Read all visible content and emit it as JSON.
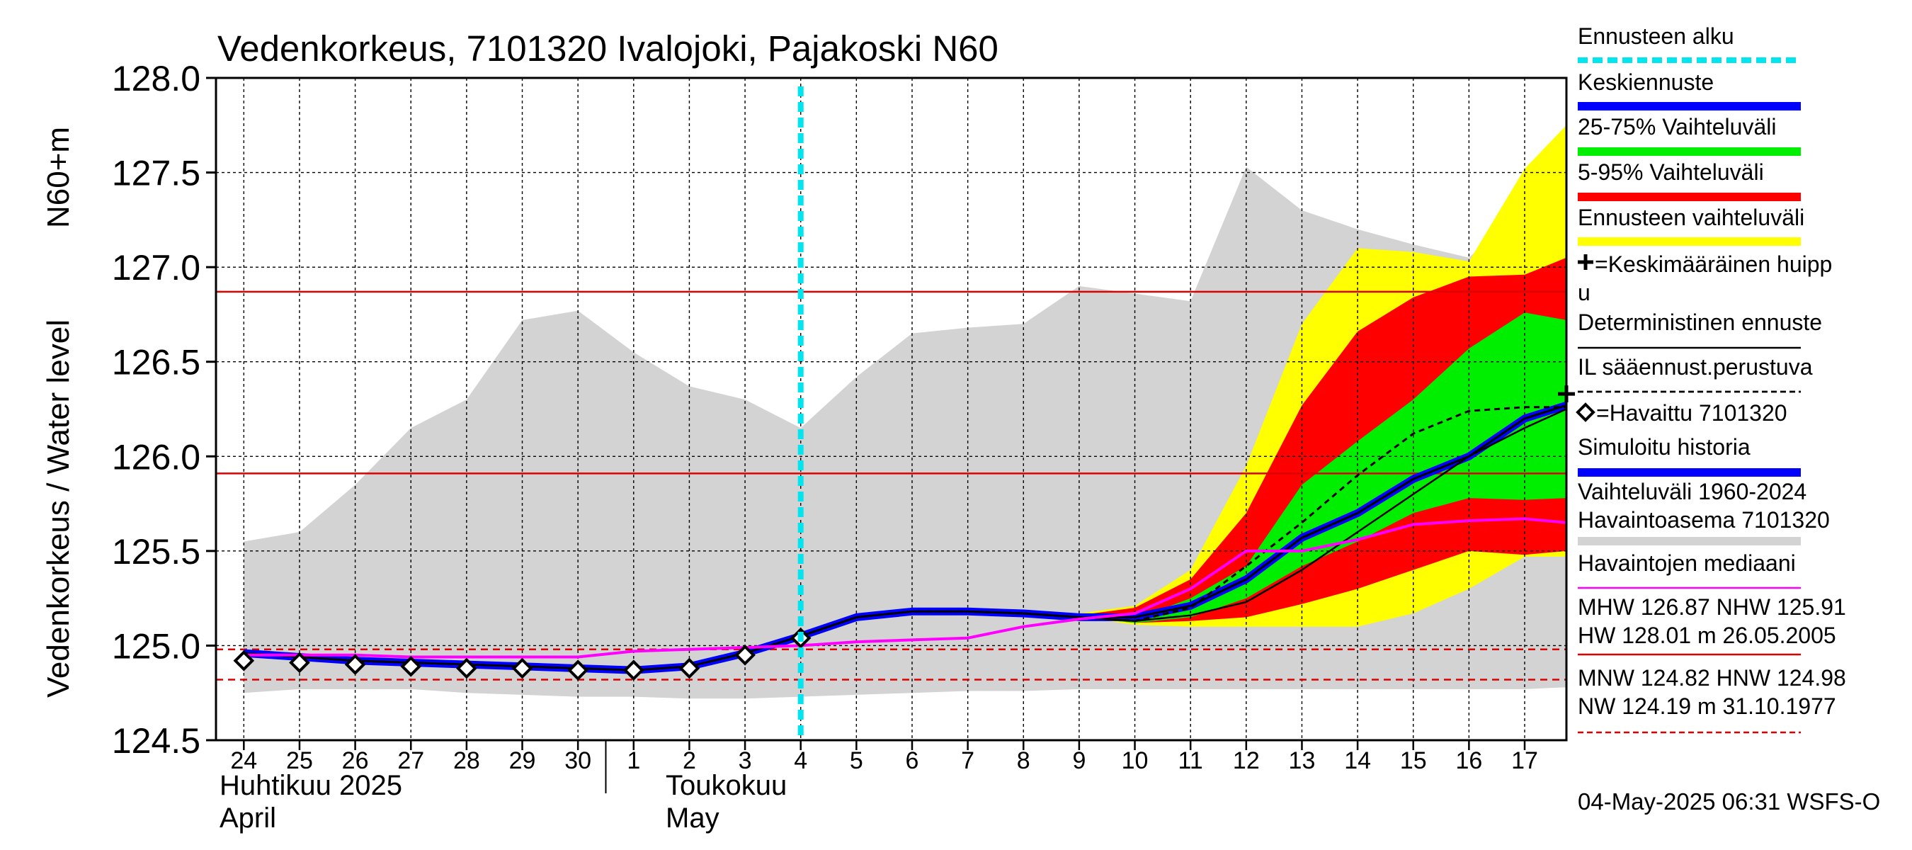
{
  "chart_data": {
    "type": "area",
    "title": "Vedenkorkeus, 7101320 Ivalojoki, Pajakoski N60",
    "ylabel_left": "Vedenkorkeus / Water level",
    "ylabel_right": "N60+m",
    "ylim": [
      124.5,
      128.0
    ],
    "y_ticks": [
      "124.5",
      "125.0",
      "125.5",
      "126.0",
      "126.5",
      "127.0",
      "127.5",
      "128.0"
    ],
    "x_range": [
      -0.5,
      23.75
    ],
    "x_tick_labels": [
      "24",
      "25",
      "26",
      "27",
      "28",
      "29",
      "30",
      "1",
      "2",
      "3",
      "4",
      "5",
      "6",
      "7",
      "8",
      "9",
      "10",
      "11",
      "12",
      "13",
      "14",
      "15",
      "16",
      "17"
    ],
    "month_labels": {
      "april_fi": "Huhtikuu  2025",
      "april_en": "April",
      "may_fi": "Toukokuu",
      "may_en": "May"
    },
    "grid": true,
    "legend_placement": "right",
    "forecast_start_x": 10,
    "reference_lines": [
      {
        "name": "MHW",
        "value": 126.87,
        "color": "#dd0000",
        "style": "solid"
      },
      {
        "name": "NHW",
        "value": 125.91,
        "color": "#dd0000",
        "style": "solid"
      },
      {
        "name": "HNW",
        "value": 124.98,
        "color": "#dd0000",
        "style": "dashed"
      },
      {
        "name": "MNW",
        "value": 124.82,
        "color": "#dd0000",
        "style": "dashed"
      }
    ],
    "variation_band": {
      "color": "#d3d3d3",
      "x": [
        0,
        1,
        2,
        3,
        4,
        5,
        6,
        7,
        8,
        9,
        10,
        11,
        12,
        13,
        14,
        15,
        16,
        17,
        18,
        19,
        20,
        21,
        22,
        23,
        23.75
      ],
      "upper": [
        125.55,
        125.6,
        125.85,
        126.15,
        126.3,
        126.72,
        126.77,
        126.55,
        126.37,
        126.3,
        126.15,
        126.42,
        126.65,
        126.68,
        126.7,
        126.9,
        126.86,
        126.82,
        127.53,
        127.3,
        127.2,
        127.12,
        127.05,
        127.32,
        127.31
      ],
      "lower": [
        124.75,
        124.77,
        124.77,
        124.77,
        124.75,
        124.74,
        124.73,
        124.73,
        124.72,
        124.72,
        124.73,
        124.74,
        124.75,
        124.76,
        124.76,
        124.77,
        124.77,
        124.77,
        124.77,
        124.77,
        124.77,
        124.77,
        124.77,
        124.77,
        124.78
      ]
    },
    "forecast_x": [
      10,
      11,
      12,
      13,
      14,
      15,
      16,
      17,
      18,
      19,
      20,
      21,
      22,
      23,
      23.75
    ],
    "forecast_range": {
      "color": "#ffff00",
      "upper": [
        125.05,
        125.15,
        125.18,
        125.18,
        125.17,
        125.17,
        125.21,
        125.4,
        125.95,
        126.7,
        127.1,
        127.08,
        127.03,
        127.52,
        127.75
      ],
      "lower": [
        125.05,
        125.15,
        125.18,
        125.18,
        125.17,
        125.15,
        125.11,
        125.1,
        125.1,
        125.1,
        125.1,
        125.17,
        125.3,
        125.47,
        125.47
      ]
    },
    "p5_95": {
      "color": "#ff0000",
      "upper": [
        125.05,
        125.15,
        125.18,
        125.18,
        125.17,
        125.16,
        125.2,
        125.35,
        125.7,
        126.27,
        126.66,
        126.84,
        126.95,
        126.96,
        127.05
      ],
      "lower": [
        125.05,
        125.15,
        125.18,
        125.18,
        125.17,
        125.15,
        125.12,
        125.13,
        125.15,
        125.22,
        125.3,
        125.4,
        125.5,
        125.48,
        125.5
      ]
    },
    "p25_75": {
      "color": "#00ee00",
      "upper": [
        125.05,
        125.15,
        125.18,
        125.18,
        125.17,
        125.15,
        125.14,
        125.25,
        125.42,
        125.85,
        126.08,
        126.3,
        126.57,
        126.76,
        126.72
      ],
      "lower": [
        125.05,
        125.15,
        125.18,
        125.18,
        125.17,
        125.15,
        125.12,
        125.15,
        125.25,
        125.42,
        125.55,
        125.7,
        125.78,
        125.77,
        125.78
      ]
    },
    "series": [
      {
        "name": "Keskiennuste",
        "color": "#0000ff",
        "style": "mean_forecast",
        "x": [
          10,
          11,
          12,
          13,
          14,
          15,
          16,
          17,
          18,
          19,
          20,
          21,
          22,
          23,
          23.75
        ],
        "values": [
          125.05,
          125.15,
          125.18,
          125.18,
          125.17,
          125.15,
          125.15,
          125.21,
          125.35,
          125.57,
          125.7,
          125.88,
          126.0,
          126.2,
          126.27
        ]
      },
      {
        "name": "Deterministinen ennuste",
        "color": "#000000",
        "style": "thin",
        "x": [
          10,
          11,
          12,
          13,
          14,
          15,
          16,
          17,
          18,
          19,
          20,
          21,
          22,
          23,
          23.75
        ],
        "values": [
          125.05,
          125.15,
          125.18,
          125.18,
          125.17,
          125.15,
          125.13,
          125.16,
          125.23,
          125.4,
          125.6,
          125.8,
          126.0,
          126.15,
          126.25
        ]
      },
      {
        "name": "IL sääennust.perustuva",
        "color": "#000000",
        "style": "dashed",
        "x": [
          10,
          11,
          12,
          13,
          14,
          15,
          16,
          17,
          18,
          19,
          20,
          21,
          22,
          23,
          23.75
        ],
        "values": [
          125.05,
          125.15,
          125.18,
          125.18,
          125.17,
          125.15,
          125.13,
          125.2,
          125.42,
          125.65,
          125.9,
          126.12,
          126.24,
          126.26,
          126.26
        ]
      },
      {
        "name": "Simuloitu historia",
        "color": "#0000ff",
        "style": "thick",
        "x": [
          0,
          1,
          2,
          3,
          4,
          5,
          6,
          7,
          8,
          9,
          10
        ],
        "values": [
          124.96,
          124.94,
          124.92,
          124.91,
          124.9,
          124.89,
          124.88,
          124.87,
          124.89,
          124.96,
          125.05
        ]
      },
      {
        "name": "Havaintojen mediaani",
        "color": "#ff00ff",
        "style": "median",
        "x": [
          0,
          1,
          2,
          3,
          4,
          5,
          6,
          7,
          8,
          9,
          10,
          11,
          12,
          13,
          14,
          15,
          16,
          17,
          18,
          19,
          20,
          21,
          22,
          23,
          23.75
        ],
        "values": [
          124.95,
          124.95,
          124.95,
          124.94,
          124.94,
          124.94,
          124.94,
          124.97,
          124.98,
          124.99,
          125.0,
          125.02,
          125.03,
          125.04,
          125.1,
          125.14,
          125.17,
          125.3,
          125.5,
          125.5,
          125.56,
          125.64,
          125.66,
          125.67,
          125.65
        ]
      },
      {
        "name": "Havaittu 7101320",
        "color": "#000000",
        "style": "diamonds",
        "x": [
          0,
          1,
          2,
          3,
          4,
          5,
          6,
          7,
          8,
          9,
          10
        ],
        "values": [
          124.92,
          124.91,
          124.9,
          124.89,
          124.88,
          124.88,
          124.87,
          124.87,
          124.88,
          124.95,
          125.04
        ]
      }
    ],
    "mean_peak": {
      "x": 23.75,
      "value": 126.33,
      "label": "+=Keskimääräinen huippu"
    },
    "legend": [
      {
        "label": "Ennusteen alku",
        "color": "#00e5ee",
        "kind": "dashed"
      },
      {
        "label": "Keskiennuste",
        "color": "#0000ff",
        "kind": "thick"
      },
      {
        "label": "25-75% Vaihteluväli",
        "color": "#00ee00",
        "kind": "thick"
      },
      {
        "label": "5-95% Vaihteluväli",
        "color": "#ff0000",
        "kind": "thick"
      },
      {
        "label": "Ennusteen vaihteluväli",
        "color": "#ffff00",
        "kind": "thick"
      },
      {
        "label": "=Keskimääräinen huipp",
        "label2": "u",
        "color": "#000000",
        "kind": "none",
        "marker": "plus"
      },
      {
        "label": "Deterministinen ennuste",
        "color": "#000000",
        "kind": "thin"
      },
      {
        "label": "IL sääennust.perustuva",
        "color": "#000000",
        "kind": "dashed_thin"
      },
      {
        "label": "=Havaittu 7101320",
        "color": "#000000",
        "kind": "none",
        "marker": "diamond"
      },
      {
        "label": "Simuloitu historia",
        "color": "#0000ff",
        "kind": "thick"
      },
      {
        "label": "Vaihteluväli 1960-2024",
        "label2": " Havaintoasema 7101320",
        "color": "#d3d3d3",
        "kind": "thick"
      },
      {
        "label": "Havaintojen mediaani",
        "color": "#ff00ff",
        "kind": "thin"
      },
      {
        "label": "MHW 126.87 NHW 125.91",
        "label2": "HW 128.01 m 26.05.2005",
        "color": "#dd0000",
        "kind": "thin"
      },
      {
        "label": "MNW 124.82 HNW 124.98",
        "label2": "NW 124.19 m 31.10.1977",
        "color": "#dd0000",
        "kind": "dashed_thin"
      }
    ],
    "footer": "04-May-2025 06:31 WSFS-O"
  }
}
